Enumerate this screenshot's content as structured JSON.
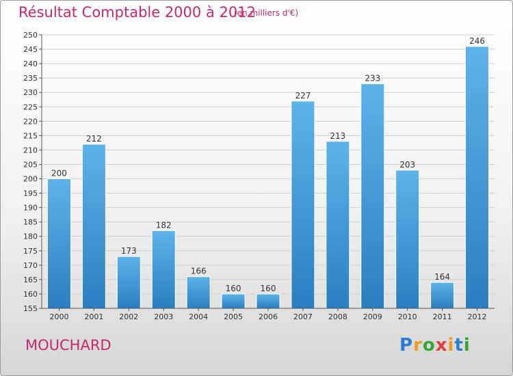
{
  "title": "Résultat Comptable 2000 à 2012",
  "subtitle": "(en milliers d'€)",
  "commune": "MOUCHARD",
  "logo": {
    "letters": [
      "P",
      "r",
      "o",
      "x",
      "i",
      "t",
      "i"
    ],
    "colors": [
      "#2a7fd4",
      "#f39a1e",
      "#3aa63a",
      "#e23c3c",
      "#f39a1e",
      "#2a7fd4",
      "#3aa63a"
    ]
  },
  "colors": {
    "title": "#c8276e",
    "bar_light": "#5eb3ea",
    "bar_dark": "#2a7fc0",
    "grid": "#cfcfcf",
    "text": "#333333"
  },
  "chart_data": {
    "type": "bar",
    "categories": [
      "2000",
      "2001",
      "2002",
      "2003",
      "2004",
      "2005",
      "2006",
      "2007",
      "2008",
      "2009",
      "2010",
      "2011",
      "2012"
    ],
    "values": [
      200,
      212,
      173,
      182,
      166,
      160,
      160,
      227,
      213,
      233,
      203,
      164,
      246
    ],
    "ylim": [
      155,
      250
    ],
    "yticks": [
      155,
      160,
      165,
      170,
      175,
      180,
      185,
      190,
      195,
      200,
      205,
      210,
      215,
      220,
      225,
      230,
      235,
      240,
      245,
      250
    ],
    "grid": true,
    "data_labels": true
  }
}
